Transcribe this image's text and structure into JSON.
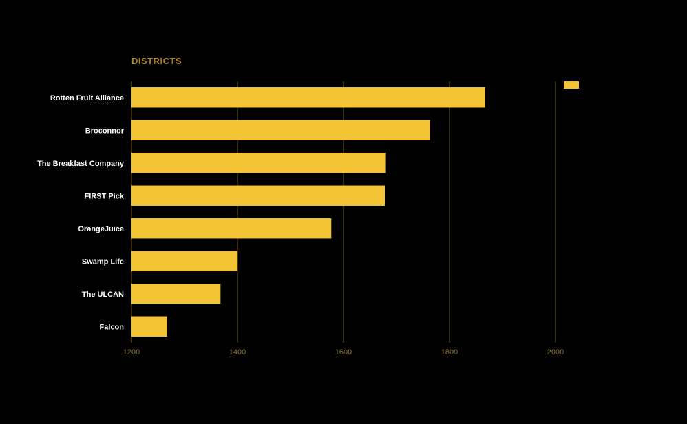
{
  "colors": {
    "background": "#000000",
    "bar": "#f2c335",
    "grid": "#6b5a22",
    "title": "#a8842a",
    "tick": "#8a7436",
    "label": "#ffffff"
  },
  "chart_data": {
    "type": "bar",
    "orientation": "horizontal",
    "title": "DISTRICTS",
    "xlabel": "",
    "ylabel": "",
    "categories": [
      "Rotten Fruit Alliance",
      "Broconnor",
      "The Breakfast Company",
      "FIRST Pick",
      "OrangeJuice",
      "Swamp Life",
      "The ULCAN",
      "Falcon"
    ],
    "values": [
      1867,
      1763,
      1680,
      1678,
      1577,
      1400,
      1368,
      1267
    ],
    "xlim": [
      1200,
      2000
    ],
    "xticks": [
      1200,
      1400,
      1600,
      1800,
      2000
    ],
    "grid": true,
    "legend": {
      "placement": "top-right",
      "entries": [
        ""
      ]
    }
  }
}
